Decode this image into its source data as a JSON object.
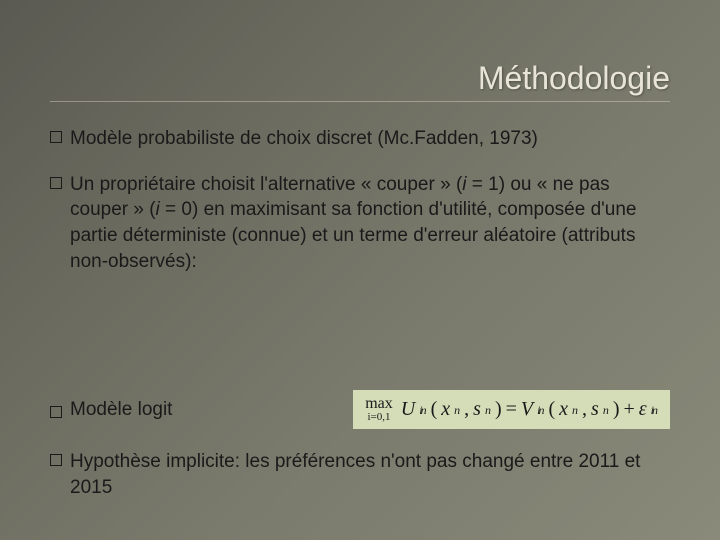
{
  "title": "Méthodologie",
  "bullets": {
    "b1": {
      "pre": "Modèle probabiliste de choix discret (Mc.Fadden, 1973)"
    },
    "b2": {
      "p1": "Un propriétaire choisit l'alternative « couper » (",
      "i1": "i",
      "p2": " = 1) ou « ne pas couper » (",
      "i2": "i",
      "p3": " = 0) en maximisant sa fonction d'utilité, composée d'une partie déterministe (connue) et un terme d'erreur aléatoire (attributs non-observés):"
    },
    "b3": {
      "text": "Modèle logit "
    },
    "b4": {
      "text": "Hypothèse implicite:  les préférences n'ont pas changé entre 2011 et 2015"
    }
  },
  "formula": {
    "max_label": "max",
    "max_sub": "i=0,1",
    "U": "U",
    "n": "n",
    "i": "i",
    "lp": "(",
    "x": "x",
    "comma": ",",
    "s": "s",
    "rp": ")",
    "eq": "=",
    "V": "V",
    "plus": "+",
    "eps": "ε",
    "bg_color": "#d4ddb8"
  },
  "colors": {
    "title": "#e8e4d8",
    "text": "#1a1a1a"
  }
}
